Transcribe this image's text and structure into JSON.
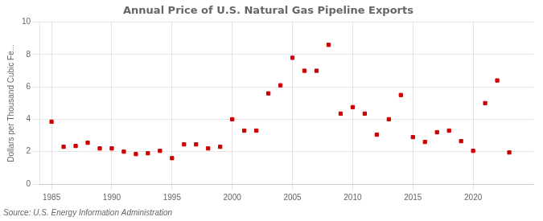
{
  "chart_data": {
    "type": "scatter",
    "title": "Annual Price of U.S. Natural Gas Pipeline Exports",
    "ylabel": "Dollars per Thousand Cubic Fe...",
    "annotation": "Source: U.S. Energy Information Administration",
    "x": [
      1985,
      1986,
      1987,
      1988,
      1989,
      1990,
      1991,
      1992,
      1993,
      1994,
      1995,
      1996,
      1997,
      1998,
      1999,
      2000,
      2001,
      2002,
      2003,
      2004,
      2005,
      2006,
      2007,
      2008,
      2009,
      2010,
      2011,
      2012,
      2013,
      2014,
      2015,
      2016,
      2017,
      2018,
      2019,
      2020,
      2021,
      2022,
      2023
    ],
    "values": [
      3.85,
      2.3,
      2.35,
      2.55,
      2.2,
      2.2,
      2.0,
      1.85,
      1.9,
      2.05,
      1.6,
      2.45,
      2.45,
      2.2,
      2.3,
      4.0,
      3.3,
      3.3,
      5.6,
      6.1,
      7.8,
      7.0,
      7.0,
      8.6,
      4.35,
      4.75,
      4.35,
      3.05,
      4.0,
      5.5,
      2.9,
      2.6,
      3.2,
      3.3,
      2.65,
      2.05,
      5.0,
      6.4,
      1.95
    ],
    "color": "#cc0000",
    "marker": "square",
    "line_style": "none",
    "xlim": [
      1984,
      2025
    ],
    "xticks": [
      1985,
      1990,
      1995,
      2000,
      2005,
      2010,
      2015,
      2020
    ],
    "ylim": [
      0,
      10
    ],
    "yticks": [
      0,
      2,
      4,
      6,
      8,
      10
    ],
    "grid": true
  }
}
